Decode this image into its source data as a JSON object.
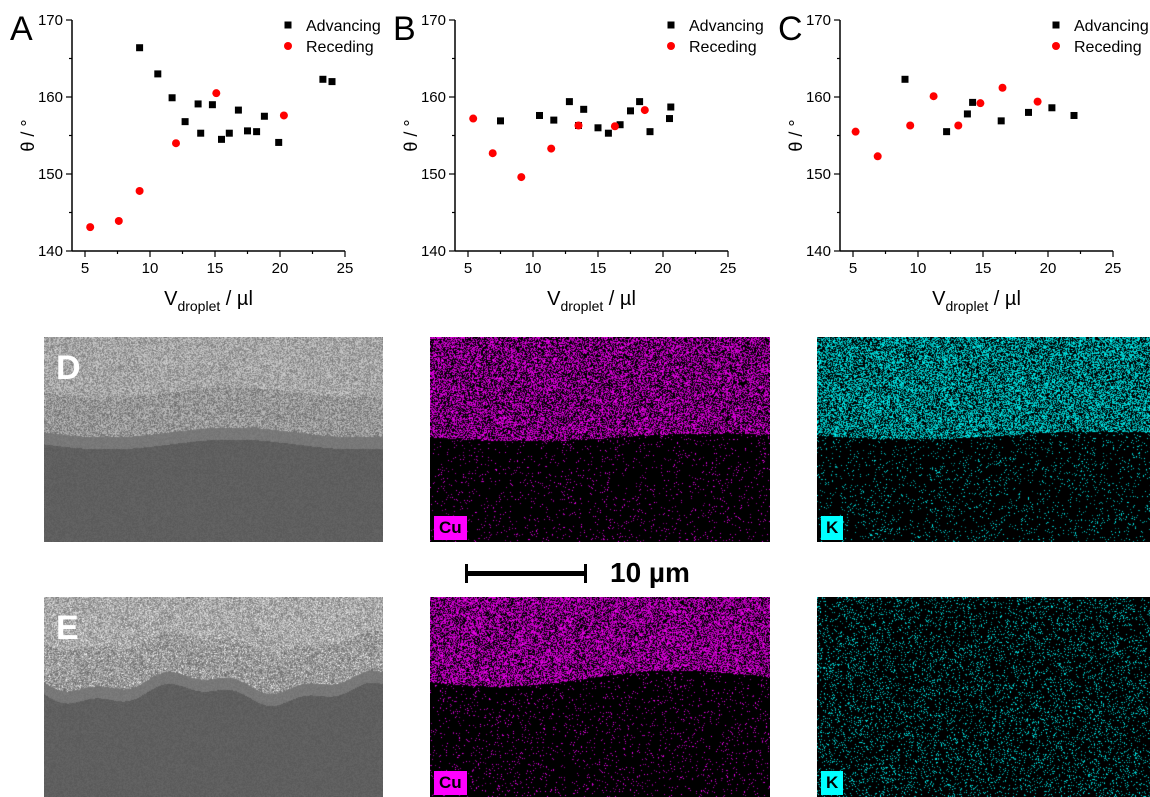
{
  "panels": {
    "A": {
      "letter": "A"
    },
    "B": {
      "letter": "B"
    },
    "C": {
      "letter": "C"
    },
    "D": {
      "letter": "D"
    },
    "E": {
      "letter": "E"
    }
  },
  "chart_data": [
    {
      "panel": "A",
      "type": "scatter",
      "xlabel_main": "V",
      "xlabel_sub": "droplet",
      "xlabel_unit": " / µl",
      "ylabel": "θ / °",
      "xlim": [
        4,
        25
      ],
      "ylim": [
        140,
        170
      ],
      "xticks": [
        "5",
        "10",
        "15",
        "20",
        "25"
      ],
      "yticks": [
        "140",
        "150",
        "160",
        "170"
      ],
      "legend_position": "top-right",
      "series": [
        {
          "name": "Advancing",
          "marker": "square",
          "color": "#000000",
          "x": [
            9.2,
            10.6,
            11.7,
            12.7,
            13.7,
            13.9,
            14.8,
            15.5,
            16.1,
            16.8,
            17.5,
            18.2,
            18.8,
            19.9,
            23.3,
            24.0
          ],
          "y": [
            166.4,
            163.0,
            159.9,
            156.8,
            159.1,
            155.3,
            159.0,
            154.5,
            155.3,
            158.3,
            155.6,
            155.5,
            157.5,
            154.1,
            162.3,
            162.0
          ]
        },
        {
          "name": "Receding",
          "marker": "circle",
          "color": "#ff0000",
          "x": [
            5.4,
            7.6,
            9.2,
            12.0,
            15.1,
            20.3
          ],
          "y": [
            143.1,
            143.9,
            147.8,
            154.0,
            160.5,
            157.6
          ]
        }
      ]
    },
    {
      "panel": "B",
      "type": "scatter",
      "xlabel_main": "V",
      "xlabel_sub": "droplet",
      "xlabel_unit": " / µl",
      "ylabel": "θ / °",
      "xlim": [
        4,
        25
      ],
      "ylim": [
        140,
        170
      ],
      "xticks": [
        "5",
        "10",
        "15",
        "20",
        "25"
      ],
      "yticks": [
        "140",
        "150",
        "160",
        "170"
      ],
      "legend_position": "top-right",
      "series": [
        {
          "name": "Advancing",
          "marker": "square",
          "color": "#000000",
          "x": [
            7.5,
            10.5,
            11.6,
            12.8,
            13.5,
            13.9,
            15.0,
            15.8,
            16.7,
            17.5,
            18.2,
            19.0,
            20.5,
            20.6
          ],
          "y": [
            156.9,
            157.6,
            157.0,
            159.4,
            156.3,
            158.4,
            156.0,
            155.3,
            156.4,
            158.2,
            159.4,
            155.5,
            157.2,
            158.7
          ]
        },
        {
          "name": "Receding",
          "marker": "circle",
          "color": "#ff0000",
          "x": [
            5.4,
            6.9,
            9.1,
            11.4,
            13.5,
            16.3,
            18.6
          ],
          "y": [
            157.2,
            152.7,
            149.6,
            153.3,
            156.3,
            156.2,
            158.3
          ]
        }
      ]
    },
    {
      "panel": "C",
      "type": "scatter",
      "xlabel_main": "V",
      "xlabel_sub": "droplet",
      "xlabel_unit": " / µl",
      "ylabel": "θ / °",
      "xlim": [
        4,
        25
      ],
      "ylim": [
        140,
        170
      ],
      "xticks": [
        "5",
        "10",
        "15",
        "20",
        "25"
      ],
      "yticks": [
        "140",
        "150",
        "160",
        "170"
      ],
      "legend_position": "top-right",
      "series": [
        {
          "name": "Advancing",
          "marker": "square",
          "color": "#000000",
          "x": [
            9.0,
            12.2,
            13.8,
            14.2,
            16.4,
            18.5,
            20.3,
            22.0
          ],
          "y": [
            162.3,
            155.5,
            157.8,
            159.3,
            156.9,
            158.0,
            158.6,
            157.6
          ]
        },
        {
          "name": "Receding",
          "marker": "circle",
          "color": "#ff0000",
          "x": [
            5.2,
            6.9,
            9.4,
            11.2,
            13.1,
            14.8,
            16.5,
            19.2
          ],
          "y": [
            155.5,
            152.3,
            156.3,
            160.1,
            156.3,
            159.2,
            161.2,
            159.4
          ]
        }
      ]
    }
  ],
  "maps": {
    "cu_label": "Cu",
    "k_label": "K",
    "cu_color": "#ff00ff",
    "k_color": "#00ffff",
    "label_bg_cu": "#ff00ff",
    "label_bg_k": "#00ffff",
    "scale_bar_label": "10 µm"
  }
}
